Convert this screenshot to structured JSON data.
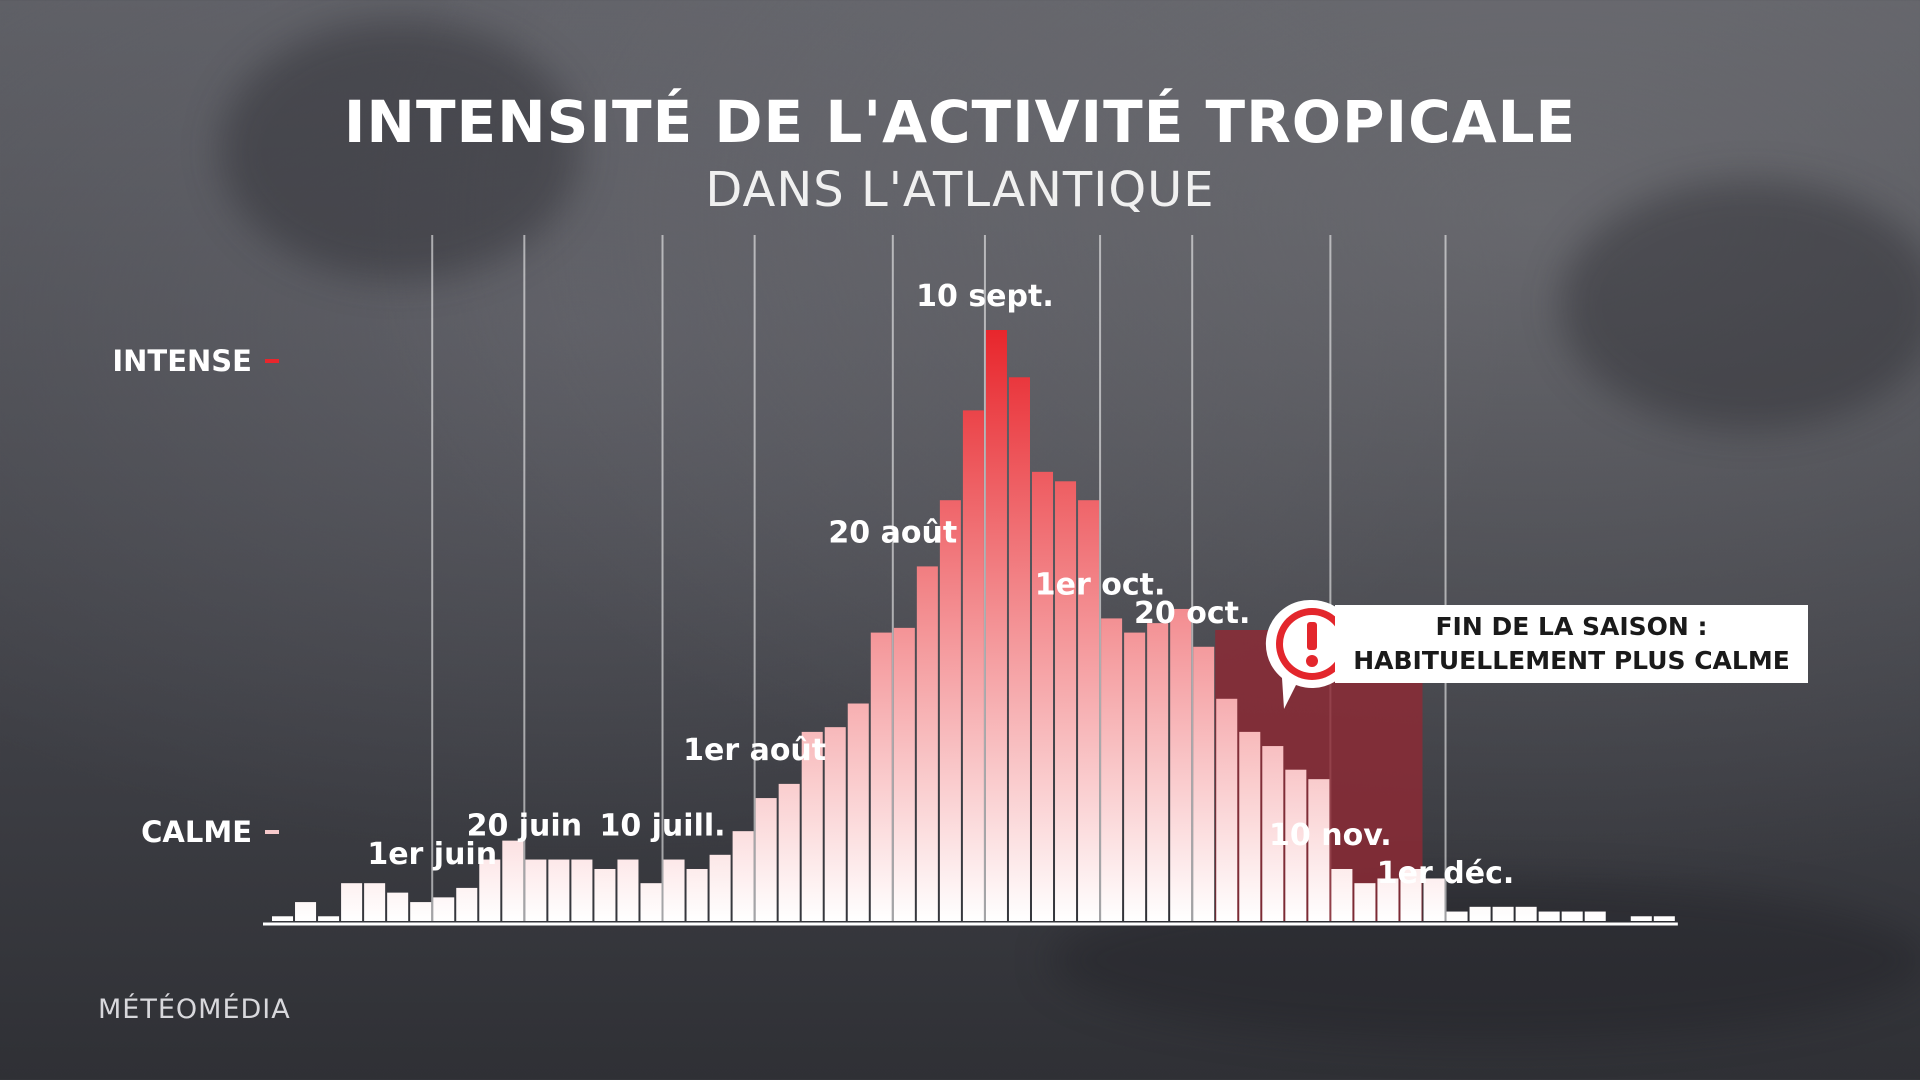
{
  "title": "INTENSITÉ DE L'ACTIVITÉ TROPICALE",
  "subtitle": "DANS L'ATLANTIQUE",
  "brand": "MÉTÉOMÉDIA",
  "callout": {
    "line1": "FIN DE LA SAISON :",
    "line2": "HABITUELLEMENT PLUS CALME",
    "icon": "alert-exclamation-icon"
  },
  "colors": {
    "accent": "#e8262c",
    "shade": "#8e2a35",
    "bar_low": "#ffffff"
  },
  "chart_data": {
    "type": "bar",
    "title": "INTENSITÉ DE L'ACTIVITÉ TROPICALE",
    "subtitle": "DANS L'ATLANTIQUE",
    "xlabel": "",
    "ylabel": "",
    "y_tick_labels": [
      {
        "label": "INTENSE",
        "value": 100
      },
      {
        "label": "CALME",
        "value": 12
      }
    ],
    "ylim": [
      0,
      125
    ],
    "grid": "vertical",
    "values": [
      1,
      4,
      1,
      8,
      8,
      6,
      4,
      5,
      7,
      13,
      17,
      13,
      13,
      13,
      11,
      13,
      8,
      13,
      11,
      14,
      19,
      26,
      29,
      40,
      41,
      46,
      61,
      62,
      75,
      89,
      108,
      125,
      115,
      95,
      93,
      89,
      64,
      61,
      63,
      66,
      58,
      47,
      40,
      37,
      32,
      30,
      11,
      8,
      9,
      11,
      9,
      2,
      3,
      3,
      3,
      2,
      2,
      2,
      0,
      1,
      1
    ],
    "annotations": [
      {
        "label": "1er juin",
        "index": 7
      },
      {
        "label": "20 juin",
        "index": 11
      },
      {
        "label": "10 juill.",
        "index": 17
      },
      {
        "label": "1er août",
        "index": 21
      },
      {
        "label": "20 août",
        "index": 27
      },
      {
        "label": "10 sept.",
        "index": 31
      },
      {
        "label": "1er oct.",
        "index": 36
      },
      {
        "label": "20 oct.",
        "index": 40
      },
      {
        "label": "10 nov.",
        "index": 46
      },
      {
        "label": "1er déc.",
        "index": 51
      }
    ],
    "highlight_range": {
      "label": "FIN DE LA SAISON : HABITUELLEMENT PLUS CALME",
      "from_index": 41,
      "to_index": 50
    }
  }
}
